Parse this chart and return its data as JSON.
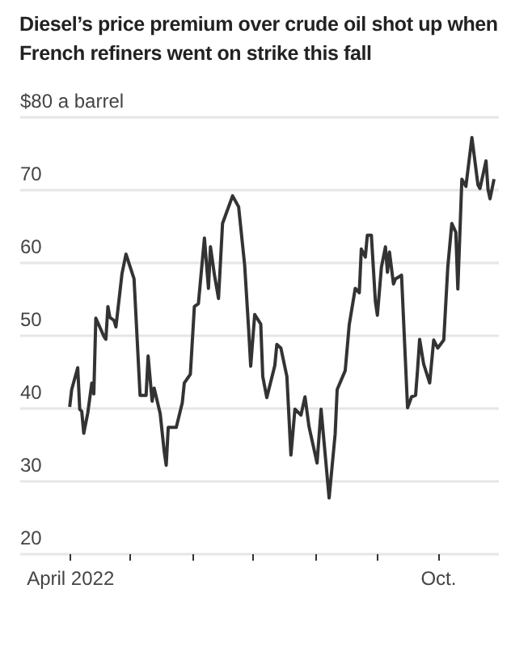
{
  "chart_data": {
    "type": "line",
    "title": "Diesel’s price premium over crude oil shot up when French refiners went on strike this fall",
    "x": [
      "2022-04-01",
      "2022-04-02",
      "2022-04-05",
      "2022-04-06",
      "2022-04-07",
      "2022-04-08",
      "2022-04-10",
      "2022-04-12",
      "2022-04-13",
      "2022-04-14",
      "2022-04-18",
      "2022-04-19",
      "2022-04-20",
      "2022-04-21",
      "2022-04-23",
      "2022-04-24",
      "2022-04-27",
      "2022-04-29",
      "2022-05-03",
      "2022-05-06",
      "2022-05-09",
      "2022-05-10",
      "2022-05-12",
      "2022-05-13",
      "2022-05-16",
      "2022-05-18",
      "2022-05-19",
      "2022-05-20",
      "2022-05-24",
      "2022-05-27",
      "2022-05-28",
      "2022-05-31",
      "2022-06-02",
      "2022-06-04",
      "2022-06-07",
      "2022-06-09",
      "2022-06-10",
      "2022-06-12",
      "2022-06-14",
      "2022-06-16",
      "2022-06-21",
      "2022-06-24",
      "2022-06-27",
      "2022-06-29",
      "2022-06-30",
      "2022-07-02",
      "2022-07-05",
      "2022-07-06",
      "2022-07-08",
      "2022-07-12",
      "2022-07-13",
      "2022-07-15",
      "2022-07-18",
      "2022-07-20",
      "2022-07-22",
      "2022-07-25",
      "2022-07-27",
      "2022-07-29",
      "2022-08-02",
      "2022-08-04",
      "2022-08-08",
      "2022-08-11",
      "2022-08-12",
      "2022-08-16",
      "2022-08-18",
      "2022-08-21",
      "2022-08-23",
      "2022-08-24",
      "2022-08-26",
      "2022-08-27",
      "2022-08-29",
      "2022-08-31",
      "2022-09-01",
      "2022-09-03",
      "2022-09-05",
      "2022-09-06",
      "2022-09-07",
      "2022-09-09",
      "2022-09-10",
      "2022-09-13",
      "2022-09-16",
      "2022-09-18",
      "2022-09-20",
      "2022-09-21",
      "2022-09-22",
      "2022-09-24",
      "2022-09-27",
      "2022-09-29",
      "2022-10-01",
      "2022-10-04",
      "2022-10-06",
      "2022-10-08",
      "2022-10-10",
      "2022-10-11",
      "2022-10-13",
      "2022-10-15",
      "2022-10-18",
      "2022-10-21",
      "2022-10-22",
      "2022-10-25",
      "2022-10-26",
      "2022-10-27",
      "2022-10-29"
    ],
    "values": [
      40.1,
      42.5,
      45.5,
      39.8,
      39.5,
      36.5,
      39.3,
      43.4,
      41.9,
      52.3,
      49.8,
      49.4,
      53.9,
      52.4,
      52,
      51.1,
      58.4,
      61.1,
      57.7,
      41.7,
      41.7,
      47.1,
      40.9,
      42.7,
      39.2,
      34,
      32.1,
      37.3,
      37.3,
      40.7,
      43.4,
      44.6,
      53.9,
      54.3,
      63.3,
      56.4,
      62.1,
      58.2,
      55,
      65.3,
      69.1,
      67.6,
      59.6,
      50.7,
      45.7,
      52.8,
      51.5,
      44.3,
      41.4,
      45.8,
      48.7,
      48.2,
      44.3,
      33.5,
      39.8,
      39,
      41.5,
      37.4,
      32.4,
      39.8,
      27.6,
      36.4,
      42.5,
      45.1,
      51.4,
      56.4,
      55.8,
      61.8,
      60.7,
      63.7,
      63.7,
      54.6,
      52.7,
      59.3,
      62.1,
      58.6,
      61.4,
      57,
      57.7,
      58.2,
      40,
      41.5,
      41.7,
      45.3,
      49.4,
      46,
      43.4,
      49.3,
      48.2,
      49.3,
      59.3,
      65.3,
      64.1,
      56.3,
      71.4,
      70.4,
      77.1,
      70.6,
      70.1,
      73.9,
      70,
      68.7,
      71.4
    ],
    "color": "#333333",
    "xlim": [
      "2022-03-07",
      "2022-10-31"
    ],
    "xticks": [
      {
        "value": "2022-04-01",
        "label": "April 2022"
      },
      {
        "value": "2022-05-01",
        "label": null
      },
      {
        "value": "2022-06-01",
        "label": null
      },
      {
        "value": "2022-07-01",
        "label": null
      },
      {
        "value": "2022-08-01",
        "label": null
      },
      {
        "value": "2022-09-01",
        "label": null
      },
      {
        "value": "2022-10-01",
        "label": "Oct."
      }
    ],
    "ylim": [
      20,
      80
    ],
    "yticks": [
      20,
      30,
      40,
      50,
      60,
      70,
      {
        "value": 80,
        "label": "$80 a barrel"
      }
    ],
    "grid": "y"
  }
}
